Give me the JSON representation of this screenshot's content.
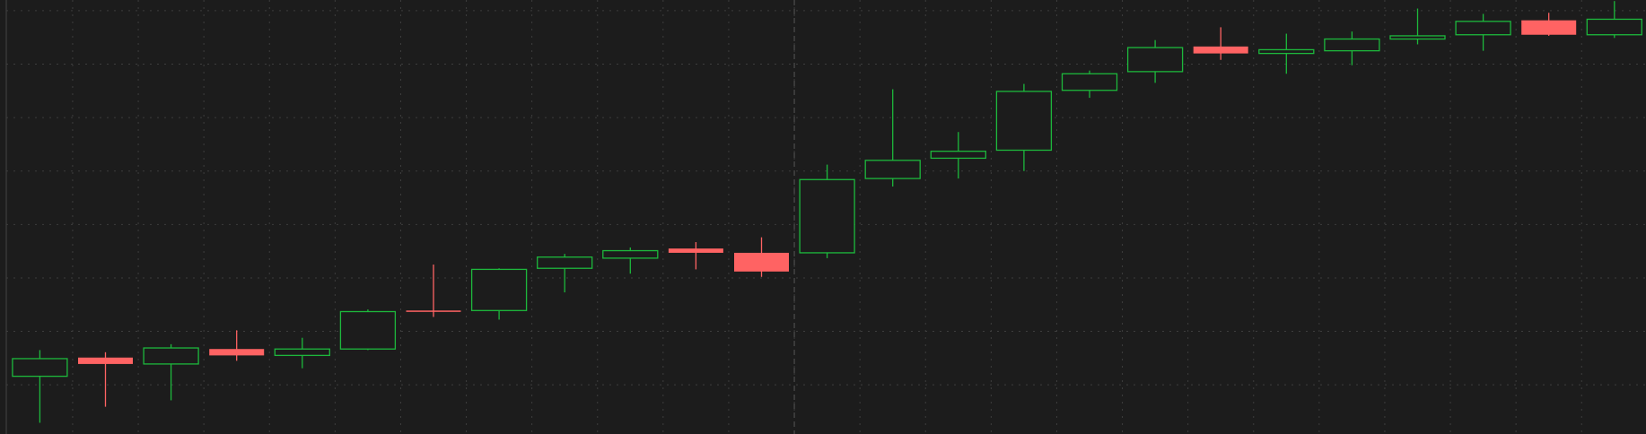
{
  "chart_data": {
    "type": "candlestick",
    "categories": [
      null,
      null,
      null,
      null,
      null,
      null,
      null,
      null,
      null,
      null,
      null,
      null,
      null,
      null,
      null,
      null,
      null,
      null,
      null,
      null,
      null,
      null,
      null,
      null,
      null
    ],
    "open": [
      1.16,
      1.51,
      1.39,
      1.67,
      1.55,
      1.67,
      2.39,
      2.39,
      3.18,
      3.37,
      3.55,
      3.47,
      3.47,
      4.86,
      5.24,
      5.39,
      6.51,
      6.86,
      7.33,
      7.2,
      7.25,
      7.47,
      7.55,
      7.82,
      7.55
    ],
    "high": [
      1.65,
      1.61,
      1.76,
      2.02,
      1.88,
      2.41,
      3.25,
      3.18,
      3.45,
      3.57,
      3.67,
      3.76,
      5.12,
      6.53,
      5.73,
      6.63,
      6.88,
      7.45,
      7.69,
      7.57,
      7.61,
      8.04,
      7.94,
      7.96,
      8.18
    ],
    "low": [
      0.29,
      0.59,
      0.71,
      1.45,
      1.31,
      1.65,
      2.27,
      2.22,
      2.73,
      3.08,
      3.16,
      3.02,
      3.37,
      4.71,
      4.86,
      5.0,
      6.37,
      6.65,
      7.08,
      6.82,
      6.98,
      7.37,
      7.25,
      7.53,
      7.49
    ],
    "close": [
      1.49,
      1.39,
      1.69,
      1.55,
      1.67,
      2.37,
      2.37,
      3.16,
      3.39,
      3.51,
      3.47,
      3.12,
      4.84,
      5.2,
      5.37,
      6.49,
      6.82,
      7.31,
      7.2,
      7.27,
      7.47,
      7.53,
      7.8,
      7.55,
      7.84
    ],
    "up_color": "#1db83c",
    "down_color": "#ff6363",
    "ylim": [
      0.08,
      8.2
    ],
    "yticks": [
      1,
      2,
      3,
      4,
      5,
      6,
      7,
      8
    ],
    "grid": true
  }
}
